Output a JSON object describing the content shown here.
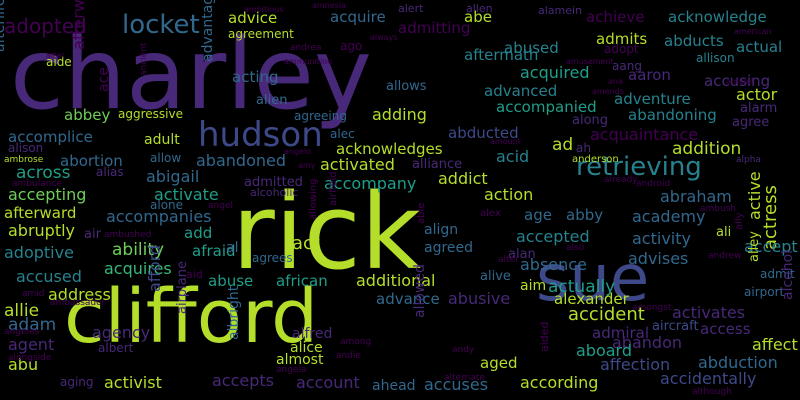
{
  "background": "#000000",
  "palette": {
    "lime": "#b5de2b",
    "green": "#6ece58",
    "teal_green": "#35b779",
    "teal": "#1f9e89",
    "cyan": "#26828e",
    "blue": "#31688e",
    "indigo": "#3e4989",
    "purple": "#482878",
    "deep": "#440154"
  },
  "words": [
    {
      "text": "charley",
      "color": "purple"
    },
    {
      "text": "rick",
      "color": "lime"
    },
    {
      "text": "clifford",
      "color": "lime"
    },
    {
      "text": "sue",
      "color": "indigo"
    },
    {
      "text": "hudson",
      "color": "indigo"
    },
    {
      "text": "retrieving",
      "color": "cyan"
    },
    {
      "text": "locket",
      "color": "blue"
    },
    {
      "text": "adopted",
      "color": "deep"
    },
    {
      "text": "afterwards",
      "color": "deep"
    },
    {
      "text": "afterlife",
      "color": "blue"
    },
    {
      "text": "advice",
      "color": "lime"
    },
    {
      "text": "agreement",
      "color": "lime"
    },
    {
      "text": "acquire",
      "color": "blue"
    },
    {
      "text": "admitting",
      "color": "deep"
    },
    {
      "text": "abe",
      "color": "lime"
    },
    {
      "text": "achieve",
      "color": "deep"
    },
    {
      "text": "acknowledge",
      "color": "cyan"
    },
    {
      "text": "aftermath",
      "color": "cyan"
    },
    {
      "text": "admits",
      "color": "lime"
    },
    {
      "text": "abducts",
      "color": "cyan"
    },
    {
      "text": "actual",
      "color": "cyan"
    },
    {
      "text": "abused",
      "color": "cyan"
    },
    {
      "text": "adopt",
      "color": "deep"
    },
    {
      "text": "allison",
      "color": "cyan"
    },
    {
      "text": "aang",
      "color": "purple"
    },
    {
      "text": "accusing",
      "color": "purple"
    },
    {
      "text": "acquired",
      "color": "teal"
    },
    {
      "text": "aaron",
      "color": "purple"
    },
    {
      "text": "actor",
      "color": "lime"
    },
    {
      "text": "advantager",
      "color": "blue"
    },
    {
      "text": "acting",
      "color": "blue"
    },
    {
      "text": "allows",
      "color": "blue"
    },
    {
      "text": "advanced",
      "color": "cyan"
    },
    {
      "text": "adventure",
      "color": "cyan"
    },
    {
      "text": "alien",
      "color": "blue"
    },
    {
      "text": "alarm",
      "color": "purple"
    },
    {
      "text": "accompanied",
      "color": "teal"
    },
    {
      "text": "abandoning",
      "color": "cyan"
    },
    {
      "text": "abbey",
      "color": "green"
    },
    {
      "text": "aggressive",
      "color": "lime"
    },
    {
      "text": "agreeing",
      "color": "blue"
    },
    {
      "text": "adding",
      "color": "lime"
    },
    {
      "text": "accomplice",
      "color": "blue"
    },
    {
      "text": "aide",
      "color": "lime"
    },
    {
      "text": "ace",
      "color": "deep"
    },
    {
      "text": "agree",
      "color": "purple"
    },
    {
      "text": "abducted",
      "color": "indigo"
    },
    {
      "text": "acquaintance",
      "color": "deep"
    },
    {
      "text": "alec",
      "color": "blue"
    },
    {
      "text": "adult",
      "color": "lime"
    },
    {
      "text": "acknowledges",
      "color": "lime"
    },
    {
      "text": "addition",
      "color": "lime"
    },
    {
      "text": "abortion",
      "color": "blue"
    },
    {
      "text": "allow",
      "color": "blue"
    },
    {
      "text": "abandoned",
      "color": "blue"
    },
    {
      "text": "activated",
      "color": "lime"
    },
    {
      "text": "alliance",
      "color": "purple"
    },
    {
      "text": "acid",
      "color": "cyan"
    },
    {
      "text": "across",
      "color": "teal"
    },
    {
      "text": "alias",
      "color": "purple"
    },
    {
      "text": "abigail",
      "color": "blue"
    },
    {
      "text": "accompany",
      "color": "teal"
    },
    {
      "text": "addict",
      "color": "lime"
    },
    {
      "text": "abraham",
      "color": "blue"
    },
    {
      "text": "accepting",
      "color": "green"
    },
    {
      "text": "activate",
      "color": "teal"
    },
    {
      "text": "admitted",
      "color": "purple"
    },
    {
      "text": "alcoholic",
      "color": "purple"
    },
    {
      "text": "action",
      "color": "lime"
    },
    {
      "text": "actress",
      "color": "lime"
    },
    {
      "text": "active",
      "color": "lime"
    },
    {
      "text": "afterward",
      "color": "lime"
    },
    {
      "text": "accompanies",
      "color": "blue"
    },
    {
      "text": "alone",
      "color": "blue"
    },
    {
      "text": "academy",
      "color": "blue"
    },
    {
      "text": "abruptly",
      "color": "lime"
    },
    {
      "text": "add",
      "color": "teal"
    },
    {
      "text": "act",
      "color": "lime"
    },
    {
      "text": "age",
      "color": "blue"
    },
    {
      "text": "abby",
      "color": "blue"
    },
    {
      "text": "activity",
      "color": "blue"
    },
    {
      "text": "accept",
      "color": "cyan"
    },
    {
      "text": "accepted",
      "color": "cyan"
    },
    {
      "text": "adoptive",
      "color": "cyan"
    },
    {
      "text": "ability",
      "color": "green"
    },
    {
      "text": "afraid",
      "color": "teal"
    },
    {
      "text": "agrees",
      "color": "blue"
    },
    {
      "text": "align",
      "color": "blue"
    },
    {
      "text": "agreed",
      "color": "blue"
    },
    {
      "text": "alan",
      "color": "purple"
    },
    {
      "text": "absence",
      "color": "blue"
    },
    {
      "text": "advises",
      "color": "blue"
    },
    {
      "text": "accused",
      "color": "cyan"
    },
    {
      "text": "acquires",
      "color": "teal_green"
    },
    {
      "text": "abuse",
      "color": "teal"
    },
    {
      "text": "african",
      "color": "teal"
    },
    {
      "text": "additional",
      "color": "lime"
    },
    {
      "text": "alive",
      "color": "blue"
    },
    {
      "text": "actually",
      "color": "teal"
    },
    {
      "text": "admit",
      "color": "blue"
    },
    {
      "text": "airport",
      "color": "blue"
    },
    {
      "text": "address",
      "color": "lime"
    },
    {
      "text": "advance",
      "color": "blue"
    },
    {
      "text": "abusive",
      "color": "purple"
    },
    {
      "text": "aim",
      "color": "lime"
    },
    {
      "text": "alexander",
      "color": "lime"
    },
    {
      "text": "activates",
      "color": "purple"
    },
    {
      "text": "adam",
      "color": "blue"
    },
    {
      "text": "accident",
      "color": "lime"
    },
    {
      "text": "access",
      "color": "purple"
    },
    {
      "text": "allie",
      "color": "lime"
    },
    {
      "text": "agency",
      "color": "purple"
    },
    {
      "text": "admiral",
      "color": "purple"
    },
    {
      "text": "aircraft",
      "color": "indigo"
    },
    {
      "text": "albright",
      "color": "blue"
    },
    {
      "text": "alfred",
      "color": "purple"
    },
    {
      "text": "abandon",
      "color": "purple"
    },
    {
      "text": "affect",
      "color": "lime"
    },
    {
      "text": "alcohol",
      "color": "purple"
    },
    {
      "text": "agent",
      "color": "purple"
    },
    {
      "text": "albert",
      "color": "purple"
    },
    {
      "text": "alice",
      "color": "lime"
    },
    {
      "text": "allowed",
      "color": "purple"
    },
    {
      "text": "aboard",
      "color": "teal"
    },
    {
      "text": "abduction",
      "color": "blue"
    },
    {
      "text": "almost",
      "color": "lime"
    },
    {
      "text": "aged",
      "color": "lime"
    },
    {
      "text": "affection",
      "color": "indigo"
    },
    {
      "text": "abu",
      "color": "lime"
    },
    {
      "text": "activist",
      "color": "lime"
    },
    {
      "text": "accepts",
      "color": "purple"
    },
    {
      "text": "account",
      "color": "purple"
    },
    {
      "text": "ahead",
      "color": "blue"
    },
    {
      "text": "accuses",
      "color": "blue"
    },
    {
      "text": "according",
      "color": "lime"
    },
    {
      "text": "accidentally",
      "color": "indigo"
    },
    {
      "text": "aging",
      "color": "purple"
    },
    {
      "text": "afford",
      "color": "indigo"
    },
    {
      "text": "airplane",
      "color": "purple"
    },
    {
      "text": "alert",
      "color": "purple"
    },
    {
      "text": "allen",
      "color": "purple"
    },
    {
      "text": "alamein",
      "color": "purple"
    },
    {
      "text": "amnesia",
      "color": "deep"
    },
    {
      "text": "ambitious",
      "color": "deep"
    },
    {
      "text": "andrea",
      "color": "deep"
    },
    {
      "text": "altar",
      "color": "deep"
    },
    {
      "text": "ammunition",
      "color": "deep"
    },
    {
      "text": "always",
      "color": "deep"
    },
    {
      "text": "ago",
      "color": "deep"
    },
    {
      "text": "amusement",
      "color": "deep"
    },
    {
      "text": "american",
      "color": "deep"
    },
    {
      "text": "ancient",
      "color": "deep"
    },
    {
      "text": "ana",
      "color": "deep"
    },
    {
      "text": "amulet",
      "color": "deep"
    },
    {
      "text": "amends",
      "color": "deep"
    },
    {
      "text": "along",
      "color": "purple"
    },
    {
      "text": "ambrose",
      "color": "lime"
    },
    {
      "text": "alison",
      "color": "purple"
    },
    {
      "text": "ambulance",
      "color": "deep"
    },
    {
      "text": "angelo",
      "color": "deep"
    },
    {
      "text": "amy",
      "color": "deep"
    },
    {
      "text": "amount",
      "color": "deep"
    },
    {
      "text": "ah",
      "color": "purple"
    },
    {
      "text": "ad",
      "color": "lime"
    },
    {
      "text": "anderson",
      "color": "lime"
    },
    {
      "text": "alpha",
      "color": "purple"
    },
    {
      "text": "already",
      "color": "deep"
    },
    {
      "text": "android",
      "color": "deep"
    },
    {
      "text": "angel",
      "color": "deep"
    },
    {
      "text": "alex",
      "color": "deep"
    },
    {
      "text": "airfield",
      "color": "deep"
    },
    {
      "text": "allowing",
      "color": "deep"
    },
    {
      "text": "air",
      "color": "purple"
    },
    {
      "text": "ambushed",
      "color": "deep"
    },
    {
      "text": "ambush",
      "color": "deep"
    },
    {
      "text": "ally",
      "color": "deep"
    },
    {
      "text": "able",
      "color": "deep"
    },
    {
      "text": "al",
      "color": "blue"
    },
    {
      "text": "alley",
      "color": "lime"
    },
    {
      "text": "ali",
      "color": "lime"
    },
    {
      "text": "also",
      "color": "deep"
    },
    {
      "text": "alter",
      "color": "deep"
    },
    {
      "text": "andrew",
      "color": "deep"
    },
    {
      "text": "aid",
      "color": "deep"
    },
    {
      "text": "amid",
      "color": "deep"
    },
    {
      "text": "ambassador",
      "color": "deep"
    },
    {
      "text": "angeles",
      "color": "deep"
    },
    {
      "text": "alongside",
      "color": "deep"
    },
    {
      "text": "amongst",
      "color": "deep"
    },
    {
      "text": "among",
      "color": "deep"
    },
    {
      "text": "andie",
      "color": "deep"
    },
    {
      "text": "andy",
      "color": "deep"
    },
    {
      "text": "aided",
      "color": "deep"
    },
    {
      "text": "angela",
      "color": "deep"
    },
    {
      "text": "alternate",
      "color": "deep"
    },
    {
      "text": "although",
      "color": "deep"
    }
  ]
}
